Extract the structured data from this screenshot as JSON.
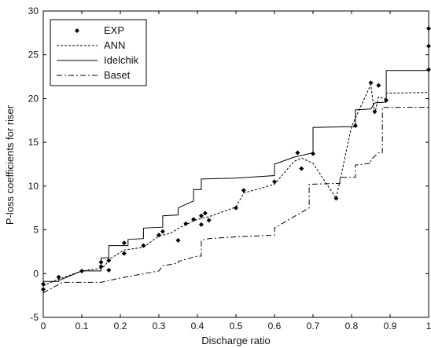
{
  "chart_data": {
    "type": "line",
    "title": "",
    "xlabel": "Discharge ratio",
    "ylabel": "P-loss coefficients for riser",
    "xlim": [
      0,
      1
    ],
    "ylim": [
      -5,
      30
    ],
    "x_ticks": [
      "0",
      "0.1",
      "0.2",
      "0.3",
      "0.4",
      "0.5",
      "0.6",
      "0.7",
      "0.8",
      "0.9",
      "1"
    ],
    "y_ticks": [
      "-5",
      "0",
      "5",
      "10",
      "15",
      "20",
      "25",
      "30"
    ],
    "grid": false,
    "legend_position": "top-left",
    "series": [
      {
        "name": "EXP",
        "style": "markers",
        "points": [
          [
            0.0,
            -1.8
          ],
          [
            0.0,
            -1.2
          ],
          [
            0.04,
            -0.4
          ],
          [
            0.1,
            0.3
          ],
          [
            0.15,
            1.3
          ],
          [
            0.15,
            0.8
          ],
          [
            0.17,
            0.4
          ],
          [
            0.17,
            1.5
          ],
          [
            0.21,
            3.5
          ],
          [
            0.21,
            2.3
          ],
          [
            0.26,
            3.2
          ],
          [
            0.3,
            4.4
          ],
          [
            0.31,
            4.8
          ],
          [
            0.35,
            3.8
          ],
          [
            0.37,
            5.7
          ],
          [
            0.39,
            6.2
          ],
          [
            0.41,
            6.6
          ],
          [
            0.41,
            5.6
          ],
          [
            0.42,
            6.9
          ],
          [
            0.43,
            6.1
          ],
          [
            0.5,
            7.5
          ],
          [
            0.52,
            9.5
          ],
          [
            0.6,
            10.5
          ],
          [
            0.66,
            13.8
          ],
          [
            0.67,
            12.0
          ],
          [
            0.7,
            13.7
          ],
          [
            0.76,
            8.6
          ],
          [
            0.81,
            16.9
          ],
          [
            0.85,
            21.8
          ],
          [
            0.86,
            18.5
          ],
          [
            0.87,
            21.5
          ],
          [
            0.89,
            19.8
          ],
          [
            1.0,
            28.0
          ],
          [
            1.0,
            26.0
          ],
          [
            1.0,
            23.3
          ]
        ]
      },
      {
        "name": "ANN",
        "style": "dashed",
        "points": [
          [
            0.0,
            -1.4
          ],
          [
            0.03,
            -0.8
          ],
          [
            0.1,
            0.3
          ],
          [
            0.15,
            0.6
          ],
          [
            0.16,
            0.9
          ],
          [
            0.17,
            1.6
          ],
          [
            0.21,
            2.7
          ],
          [
            0.26,
            3.0
          ],
          [
            0.3,
            4.3
          ],
          [
            0.33,
            4.6
          ],
          [
            0.36,
            5.4
          ],
          [
            0.4,
            6.2
          ],
          [
            0.43,
            6.5
          ],
          [
            0.5,
            7.6
          ],
          [
            0.52,
            9.2
          ],
          [
            0.6,
            10.2
          ],
          [
            0.65,
            12.8
          ],
          [
            0.67,
            13.2
          ],
          [
            0.7,
            12.6
          ],
          [
            0.76,
            8.6
          ],
          [
            0.8,
            16.8
          ],
          [
            0.85,
            21.6
          ],
          [
            0.86,
            18.2
          ],
          [
            0.87,
            20.2
          ],
          [
            0.89,
            19.9
          ],
          [
            0.89,
            20.6
          ],
          [
            1.0,
            20.7
          ]
        ]
      },
      {
        "name": "Idelchik",
        "style": "solid",
        "points": [
          [
            0.0,
            -0.9
          ],
          [
            0.04,
            -0.9
          ],
          [
            0.04,
            -0.8
          ],
          [
            0.1,
            0.3
          ],
          [
            0.15,
            0.3
          ],
          [
            0.15,
            1.8
          ],
          [
            0.17,
            1.8
          ],
          [
            0.17,
            3.2
          ],
          [
            0.22,
            3.2
          ],
          [
            0.22,
            3.9
          ],
          [
            0.26,
            4.0
          ],
          [
            0.26,
            5.2
          ],
          [
            0.31,
            5.3
          ],
          [
            0.31,
            6.6
          ],
          [
            0.35,
            6.7
          ],
          [
            0.35,
            7.5
          ],
          [
            0.39,
            8.3
          ],
          [
            0.39,
            9.6
          ],
          [
            0.41,
            9.6
          ],
          [
            0.41,
            10.8
          ],
          [
            0.5,
            10.9
          ],
          [
            0.6,
            11.2
          ],
          [
            0.6,
            12.5
          ],
          [
            0.65,
            13.3
          ],
          [
            0.7,
            13.8
          ],
          [
            0.7,
            16.7
          ],
          [
            0.81,
            16.8
          ],
          [
            0.81,
            18.7
          ],
          [
            0.85,
            18.8
          ],
          [
            0.86,
            19.5
          ],
          [
            0.89,
            19.6
          ],
          [
            0.89,
            23.2
          ],
          [
            1.0,
            23.2
          ]
        ]
      },
      {
        "name": "Baset",
        "style": "dashdot",
        "points": [
          [
            0.0,
            -2.2
          ],
          [
            0.05,
            -1.0
          ],
          [
            0.15,
            -1.0
          ],
          [
            0.2,
            -0.5
          ],
          [
            0.3,
            0.3
          ],
          [
            0.31,
            0.9
          ],
          [
            0.35,
            1.2
          ],
          [
            0.35,
            1.4
          ],
          [
            0.4,
            2.0
          ],
          [
            0.41,
            2.0
          ],
          [
            0.41,
            3.8
          ],
          [
            0.43,
            4.0
          ],
          [
            0.5,
            4.2
          ],
          [
            0.6,
            4.4
          ],
          [
            0.6,
            5.2
          ],
          [
            0.65,
            6.5
          ],
          [
            0.69,
            7.5
          ],
          [
            0.69,
            10.2
          ],
          [
            0.76,
            10.3
          ],
          [
            0.77,
            10.3
          ],
          [
            0.77,
            11.0
          ],
          [
            0.81,
            11.0
          ],
          [
            0.81,
            12.4
          ],
          [
            0.85,
            12.6
          ],
          [
            0.85,
            13.0
          ],
          [
            0.87,
            13.8
          ],
          [
            0.88,
            13.8
          ],
          [
            0.88,
            19.0
          ],
          [
            1.0,
            19.0
          ]
        ]
      }
    ]
  }
}
